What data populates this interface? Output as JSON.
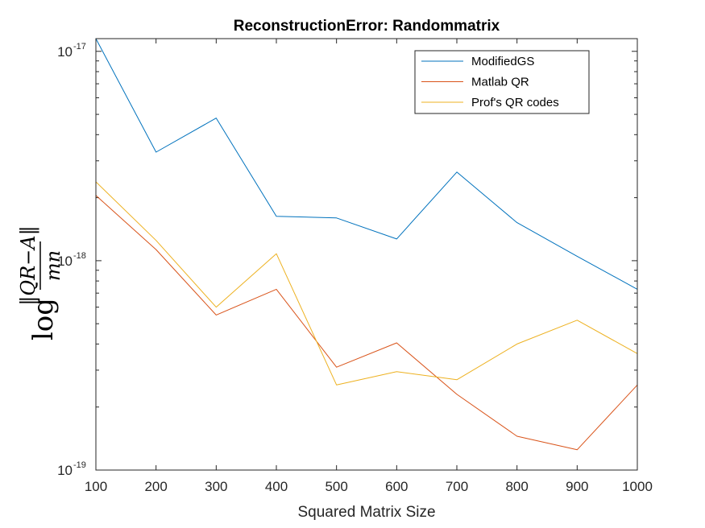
{
  "chart_data": {
    "type": "line",
    "title": "ReconstructionError: Randommatrix",
    "xlabel": "Squared Matrix Size",
    "ylabel": {
      "prefix": "log",
      "numerator": "‖QR−A‖",
      "denominator": "mn"
    },
    "x": [
      100,
      200,
      300,
      400,
      500,
      600,
      700,
      800,
      900,
      1000
    ],
    "x_ticks": [
      "100",
      "200",
      "300",
      "400",
      "500",
      "600",
      "700",
      "800",
      "900",
      "1000"
    ],
    "y_scale": "log",
    "ylim": [
      1e-19,
      1.15e-17
    ],
    "y_ticks": [
      {
        "base": "10",
        "exponent": "-17"
      },
      {
        "base": "10",
        "exponent": "-18"
      },
      {
        "base": "10",
        "exponent": "-19"
      }
    ],
    "grid": false,
    "legend_position": "top-right",
    "series": [
      {
        "name": "ModifiedGS",
        "color": "#0072BD",
        "values": [
          1.15e-17,
          3.3e-18,
          4.8e-18,
          1.63e-18,
          1.6e-18,
          1.27e-18,
          2.65e-18,
          1.52e-18,
          1.05e-18,
          7.3e-19
        ]
      },
      {
        "name": "Matlab QR",
        "color": "#D95319",
        "values": [
          2.05e-18,
          1.13e-18,
          5.5e-19,
          7.3e-19,
          3.1e-19,
          4.05e-19,
          2.3e-19,
          1.45e-19,
          1.25e-19,
          2.55e-19
        ]
      },
      {
        "name": "Prof's QR codes",
        "color": "#EDB120",
        "values": [
          2.38e-18,
          1.25e-18,
          6e-19,
          1.08e-18,
          2.55e-19,
          2.95e-19,
          2.7e-19,
          4e-19,
          5.2e-19,
          3.6e-19
        ]
      }
    ]
  }
}
